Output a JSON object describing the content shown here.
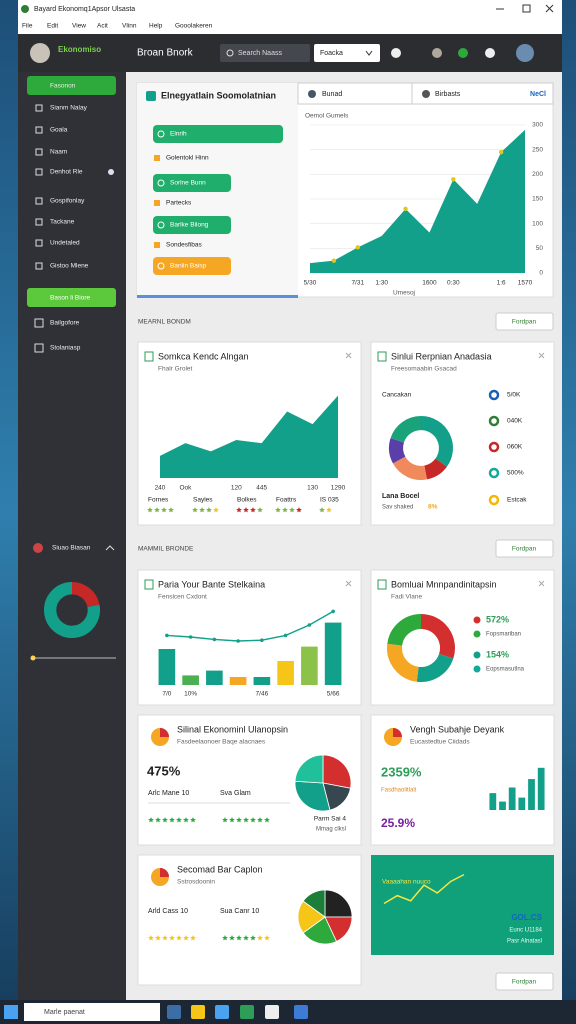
{
  "window": {
    "title": "Bayard Ekonomq1Apsor Ulsasta",
    "menu": [
      "File",
      "Edit",
      "View",
      "Acit",
      "Vlinn",
      "Help",
      "Gooolakeren"
    ]
  },
  "header": {
    "logo": "Ekonomiso",
    "brand": "Broan Bnork",
    "search": "Search Naass",
    "dropdown": "Foacka"
  },
  "sidebar": {
    "items": [
      "Fasonon",
      "Sianm Nalay",
      "Goala",
      "Naam",
      "Denhot Rle",
      "Gospifonlay",
      "Tackane",
      "Undetaled",
      "Gistoo Mlene"
    ],
    "action": "Bason li Biore",
    "items2": [
      "Bailgofore",
      "Stolaniasp"
    ],
    "profile": "Siuao Biasan",
    "chart": {
      "type": "donut",
      "values": [
        22,
        78
      ],
      "colors": [
        "#c62828",
        "#13a08a"
      ]
    }
  },
  "overview": {
    "title": "Elnegyatlain Soomolatnian",
    "buttons": [
      {
        "text": "Elnrih",
        "style": "green"
      },
      {
        "text": "Golentokl Hinn",
        "style": "plain"
      },
      {
        "text": "Sorlne Bunn",
        "style": "green"
      },
      {
        "text": "Partecks",
        "style": "plain"
      },
      {
        "text": "Barlke Bilong",
        "style": "green"
      },
      {
        "text": "Sondesfibas",
        "style": "plain"
      },
      {
        "text": "Banlin Baisp",
        "style": "orange"
      }
    ],
    "tabs": [
      "Bunad",
      "Birbasts",
      "NeCl"
    ],
    "chart": {
      "type": "area",
      "subtitle": "Oemol Gumels",
      "x_label": "Umesoj",
      "categories": [
        "5/30",
        null,
        "7/31",
        "1:30",
        null,
        "1600",
        "0:30",
        null,
        "1:6",
        "1570"
      ],
      "values": [
        20,
        25,
        52,
        75,
        130,
        82,
        190,
        140,
        245,
        290
      ],
      "ylim": [
        0,
        300
      ],
      "yticks": [
        0,
        50,
        100,
        150,
        200,
        250,
        300
      ],
      "color": "#13a08a",
      "grid": true,
      "dots": true
    }
  },
  "sections": [
    {
      "label": "MEARNL BONDM",
      "button": "Fordpan"
    },
    {
      "label": "MAMMIL BRONDE",
      "button": "Fordpan"
    },
    {
      "label": "MAMMIL BRONDE",
      "button": "Fordpan"
    }
  ],
  "cards": [
    {
      "title": "Somkca Kendc Alngan",
      "subtitle": "Fhalr Grolet",
      "chart": {
        "type": "area",
        "categories": [
          "240",
          "Ook",
          null,
          "120",
          "445",
          null,
          "130",
          "1290"
        ],
        "values": [
          35,
          55,
          42,
          60,
          55,
          105,
          85,
          130
        ],
        "ylim": [
          0,
          150
        ],
        "color": "#13a08a"
      },
      "legend": [
        "Fornes",
        "Sayles",
        "Bolkes",
        "Foattrs",
        "IS 035"
      ]
    },
    {
      "title": "Sinlui Rerpnian Anadasia",
      "subtitle": "Freesomaabin Gsacad",
      "label": "Cancakan",
      "chart": {
        "type": "donut",
        "values": [
          35,
          12,
          20,
          13,
          20
        ],
        "colors": [
          "#13a08a",
          "#c62828",
          "#f08a5d",
          "#5b3fa8",
          "#1aa37a"
        ]
      },
      "legend": [
        {
          "text": "5/0K",
          "color": "#1a5fb4"
        },
        {
          "text": "040K",
          "color": "#2e7d32"
        },
        {
          "text": "060K",
          "color": "#c62828"
        },
        {
          "text": "500%",
          "color": "#12a89a"
        },
        {
          "text": "Estcak",
          "color": "#f5b800"
        }
      ],
      "foot": [
        "Lana Bocel",
        "Sav shaked"
      ],
      "badge": "8%"
    },
    {
      "title": "Paria Your Bante Stelkaina",
      "subtitle": "Fenslcen Cxdont",
      "chart": {
        "type": "bars",
        "categories": [
          "7/0",
          "10%",
          null,
          null,
          "7/46",
          null,
          null,
          "5/66"
        ],
        "values": [
          45,
          12,
          18,
          10,
          10,
          30,
          48,
          78
        ],
        "colors": [
          "#13a08a",
          "#4caf50",
          "#13a08a",
          "#f5a623",
          "#13a08a",
          "#f5c518",
          "#8bc34a",
          "#13a08a"
        ],
        "line": [
          62,
          60,
          57,
          55,
          56,
          62,
          75,
          92
        ],
        "line_color": "#13a08a",
        "ylim": [
          0,
          100
        ]
      }
    },
    {
      "title": "Bomluai Mnnpandinitapsin",
      "subtitle": "Fadi Vlane",
      "chart": {
        "type": "donut",
        "values": [
          30,
          22,
          25,
          23
        ],
        "colors": [
          "#d32f2f",
          "#13a08a",
          "#f5a623",
          "#2eaa3c"
        ]
      },
      "legend": [
        {
          "text": "572%",
          "color": "#d32f2f"
        },
        {
          "text": "Fopsmariban",
          "color": "#2eaa3c"
        },
        {
          "text": "154%",
          "color": "#13a08a"
        },
        {
          "text": "Eopsmasutlna",
          "color": "#12a89a"
        }
      ]
    },
    {
      "title": "Silinal Ekonominl Ulanopsin",
      "subtitle": "Fasdeelaonoer Baqe alacnaes",
      "kpi": "475%",
      "labels": [
        "Arlc Mane 10",
        "Sva Glam"
      ],
      "notes": [
        "Parm Sai 4",
        "Mmag clksl"
      ],
      "chart": {
        "type": "pie",
        "values": [
          28,
          18,
          30,
          24
        ],
        "colors": [
          "#d32f2f",
          "#37474f",
          "#13a08a",
          "#1fc09a"
        ]
      }
    },
    {
      "title": "Vengh Subahje Deyank",
      "subtitle": "Eucastedtue Ciidads",
      "kpi": "2359%",
      "note": "Fasdhaolitlalt",
      "kpi2": "25.9%",
      "chart": {
        "type": "bars",
        "values": [
          30,
          15,
          40,
          22,
          55,
          75
        ],
        "colors": [
          "#13a08a",
          "#13a08a",
          "#13a08a",
          "#13a08a",
          "#13a08a",
          "#13a08a"
        ],
        "ylim": [
          0,
          80
        ]
      }
    },
    {
      "title": "Secomad Bar Caplon",
      "subtitle": "Sstrosdoonin",
      "labels": [
        "Arld Cass 10",
        "Sua Canr 10"
      ],
      "chart": {
        "type": "pie",
        "values": [
          25,
          18,
          22,
          20,
          15
        ],
        "colors": [
          "#222222",
          "#d32f2f",
          "#2eaa3c",
          "#f5c518",
          "#1b7f3a"
        ]
      }
    },
    {
      "title": "Vaaaahan nuuco",
      "badge": "GOL.CS",
      "notes": [
        "Eunc U1184",
        "Pasr Alnatasl"
      ],
      "chart": {
        "type": "line",
        "values": [
          20,
          35,
          25,
          55,
          40,
          62,
          75
        ],
        "ylim": [
          0,
          80
        ],
        "color": "#f5e642"
      }
    }
  ],
  "taskbar": {
    "search": "Marle paenat"
  }
}
